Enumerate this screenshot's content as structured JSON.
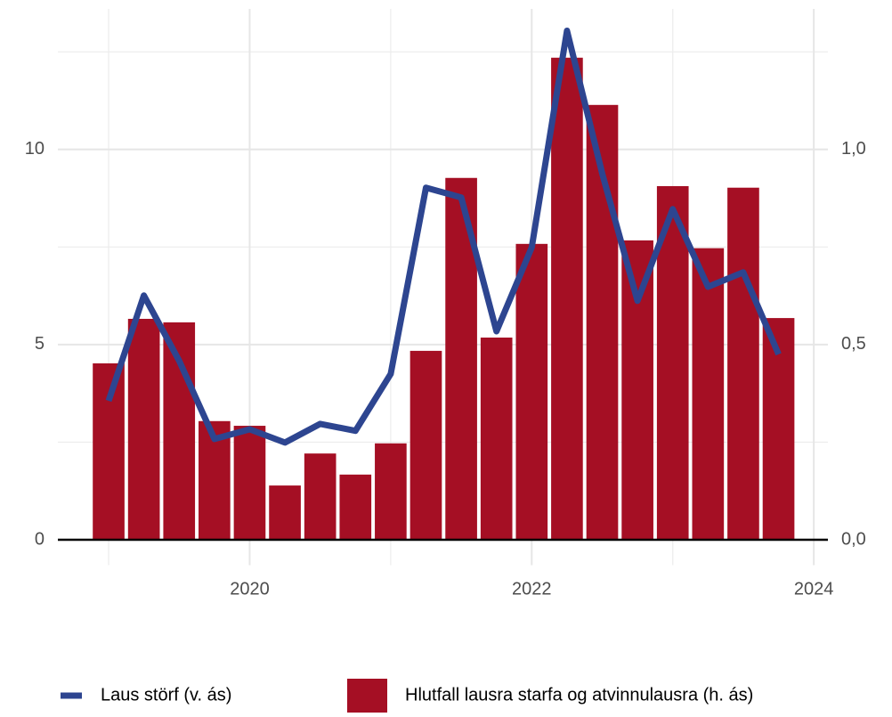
{
  "chart_data": {
    "type": "bar-line",
    "x": [
      2019,
      2019.25,
      2019.5,
      2019.75,
      2020,
      2020.25,
      2020.5,
      2020.75,
      2021,
      2021.25,
      2021.5,
      2021.75,
      2022,
      2022.25,
      2022.5,
      2022.75,
      2023,
      2023.25,
      2023.5,
      2023.75
    ],
    "series": [
      {
        "name": "Laus störf (v. ás)",
        "type": "line",
        "color": "#2d4590",
        "axis": "y",
        "values": [
          3.56,
          6.26,
          4.59,
          2.58,
          2.83,
          2.49,
          2.97,
          2.79,
          4.25,
          9.02,
          8.77,
          5.34,
          7.49,
          13.04,
          9.38,
          6.12,
          8.47,
          6.48,
          6.85,
          4.75
        ]
      },
      {
        "name": "Hlutfall lausra starfa og atvinnulausra (h. ás)",
        "type": "bar",
        "color": "#a50f24",
        "axis": "y2",
        "values": [
          0.452,
          0.566,
          0.557,
          0.304,
          0.292,
          0.139,
          0.221,
          0.167,
          0.247,
          0.484,
          0.927,
          0.518,
          0.758,
          1.235,
          1.114,
          0.767,
          0.906,
          0.747,
          0.902,
          0.568
        ]
      }
    ],
    "xlim": [
      2018.64,
      2024.1
    ],
    "xticks": [
      2020,
      2022,
      2024
    ],
    "x_minor_ticks": [
      2019,
      2021,
      2023
    ],
    "ylim": [
      -0.65,
      13.6
    ],
    "yticks": [
      0,
      5,
      10
    ],
    "y_minor_ticks": [
      2.5,
      7.5,
      12.5
    ],
    "y2lim": [
      -0.065,
      1.36
    ],
    "y2ticks": [
      {
        "value": 0,
        "label": "0,0"
      },
      {
        "value": 0.5,
        "label": "0,5"
      },
      {
        "value": 1,
        "label": "1,0"
      }
    ],
    "grid": true,
    "legend": "bottom"
  }
}
